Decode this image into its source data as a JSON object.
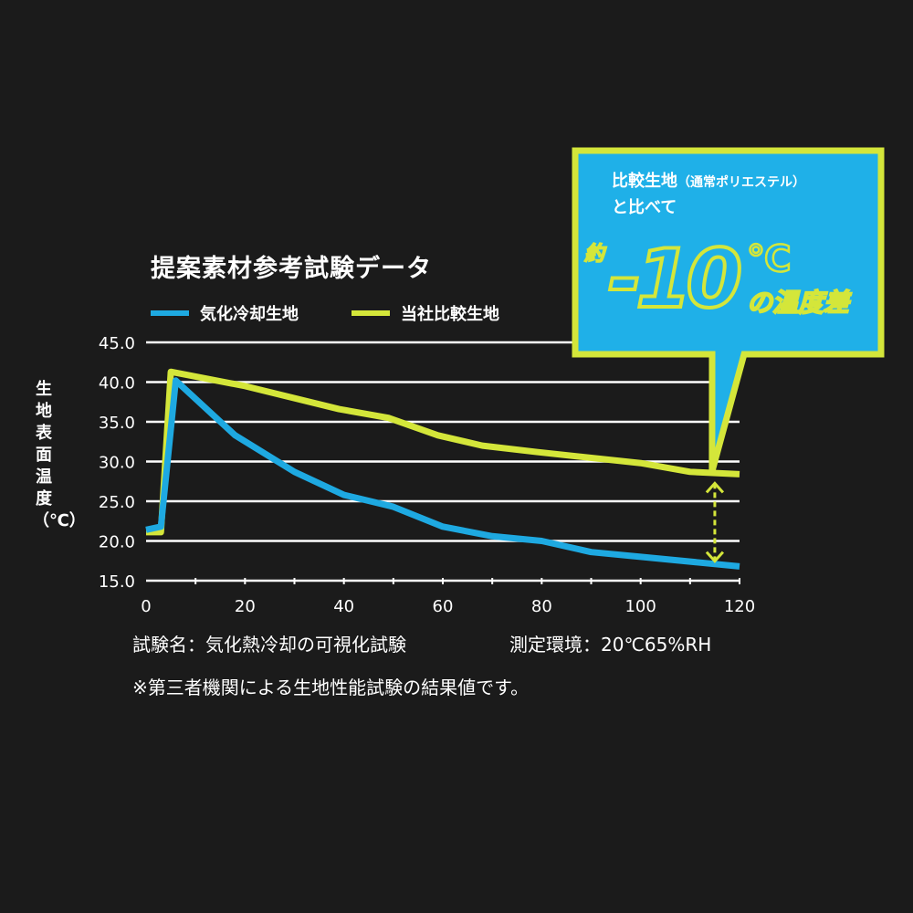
{
  "chart_data": {
    "type": "line",
    "title": "提案素材参考試験データ",
    "ylabel": "生地表面温度（℃）",
    "xlim": [
      0,
      120
    ],
    "ylim": [
      15,
      45
    ],
    "x_ticks": [
      "0",
      "20",
      "40",
      "60",
      "80",
      "100",
      "120"
    ],
    "y_ticks": [
      "45.0",
      "40.0",
      "35.0",
      "30.0",
      "25.0",
      "20.0",
      "15.0"
    ],
    "grid": "horizontal",
    "legend_position": "top",
    "series": [
      {
        "name": "気化冷却生地",
        "color": "#1ea9e1",
        "points": [
          [
            0,
            21.4
          ],
          [
            3,
            21.8
          ],
          [
            6,
            40.2
          ],
          [
            18,
            33.3
          ],
          [
            30,
            28.7
          ],
          [
            40,
            25.8
          ],
          [
            50,
            24.3
          ],
          [
            60,
            21.8
          ],
          [
            70,
            20.6
          ],
          [
            80,
            20.0
          ],
          [
            90,
            18.6
          ],
          [
            100,
            18.0
          ],
          [
            120,
            16.8
          ]
        ]
      },
      {
        "name": "当社比較生地",
        "color": "#d4e63a",
        "points": [
          [
            0,
            21.1
          ],
          [
            3,
            21.1
          ],
          [
            5,
            41.3
          ],
          [
            20,
            39.5
          ],
          [
            39,
            36.6
          ],
          [
            49,
            35.5
          ],
          [
            59,
            33.3
          ],
          [
            68,
            32.0
          ],
          [
            79,
            31.2
          ],
          [
            100,
            29.8
          ],
          [
            110,
            28.7
          ],
          [
            120,
            28.4
          ]
        ]
      }
    ],
    "annotation": {
      "arrow_at_x": 115,
      "from": 28.4,
      "to": 17.0
    }
  },
  "callout": {
    "line1": "比較生地",
    "line1_paren": "（通常ポリエステル）",
    "line2": "と比べて",
    "approx": "約",
    "value": "-10",
    "unit": "℃",
    "suffix": "の温度差",
    "bg_color": "#1fb0e8",
    "border_color": "#d4e63a"
  },
  "footer": {
    "test_name": "試験名：気化熱冷却の可視化試験",
    "environment": "測定環境：20℃65%RH",
    "note": "※第三者機関による生地性能試験の結果値です。"
  }
}
